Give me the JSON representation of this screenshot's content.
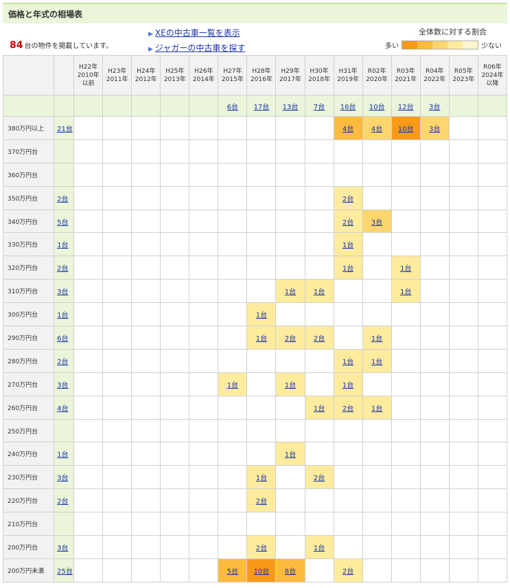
{
  "title": "価格と年式の相場表",
  "count": {
    "number": "84",
    "suffix": "台の物件を掲載しています。"
  },
  "links": [
    {
      "label": "XEの中古車一覧を表示"
    },
    {
      "label": "ジャガーの中古車を探す"
    }
  ],
  "legend": {
    "title": "全体数に対する割合",
    "many": "多い",
    "few": "少ない",
    "colors": [
      "#f89a18",
      "#fcbb3e",
      "#fdd66e",
      "#fdeb9e",
      "#fef6cc"
    ]
  },
  "columns": [
    "H22年\n2010年\n以前",
    "H23年\n2011年",
    "H24年\n2012年",
    "H25年\n2013年",
    "H26年\n2014年",
    "H27年\n2015年",
    "H28年\n2016年",
    "H29年\n2017年",
    "H30年\n2018年",
    "H31年\n2019年",
    "R02年\n2020年",
    "R03年\n2021年",
    "R04年\n2022年",
    "R05年\n2023年",
    "R06年\n2024年\n以降"
  ],
  "year_totals": [
    "",
    "",
    "",
    "",
    "",
    "6台",
    "17台",
    "13台",
    "7台",
    "16台",
    "10台",
    "12台",
    "3台",
    "",
    ""
  ],
  "rows": [
    {
      "label": "380万円以上",
      "total": "21台",
      "cells": [
        "",
        "",
        "",
        "",
        "",
        "",
        "",
        "",
        "",
        "4台",
        "4台",
        "10台",
        "3台",
        "",
        ""
      ],
      "levels": [
        0,
        0,
        0,
        0,
        0,
        0,
        0,
        0,
        0,
        3,
        2,
        4,
        2,
        0,
        0
      ]
    },
    {
      "label": "370万円台",
      "total": "",
      "cells": [
        "",
        "",
        "",
        "",
        "",
        "",
        "",
        "",
        "",
        "",
        "",
        "",
        "",
        "",
        ""
      ],
      "levels": [
        0,
        0,
        0,
        0,
        0,
        0,
        0,
        0,
        0,
        0,
        0,
        0,
        0,
        0,
        0
      ]
    },
    {
      "label": "360万円台",
      "total": "",
      "cells": [
        "",
        "",
        "",
        "",
        "",
        "",
        "",
        "",
        "",
        "",
        "",
        "",
        "",
        "",
        ""
      ],
      "levels": [
        0,
        0,
        0,
        0,
        0,
        0,
        0,
        0,
        0,
        0,
        0,
        0,
        0,
        0,
        0
      ]
    },
    {
      "label": "350万円台",
      "total": "2台",
      "cells": [
        "",
        "",
        "",
        "",
        "",
        "",
        "",
        "",
        "",
        "2台",
        "",
        "",
        "",
        "",
        ""
      ],
      "levels": [
        0,
        0,
        0,
        0,
        0,
        0,
        0,
        0,
        0,
        1,
        0,
        0,
        0,
        0,
        0
      ]
    },
    {
      "label": "340万円台",
      "total": "5台",
      "cells": [
        "",
        "",
        "",
        "",
        "",
        "",
        "",
        "",
        "",
        "2台",
        "3台",
        "",
        "",
        "",
        ""
      ],
      "levels": [
        0,
        0,
        0,
        0,
        0,
        0,
        0,
        0,
        0,
        1,
        2,
        0,
        0,
        0,
        0
      ]
    },
    {
      "label": "330万円台",
      "total": "1台",
      "cells": [
        "",
        "",
        "",
        "",
        "",
        "",
        "",
        "",
        "",
        "1台",
        "",
        "",
        "",
        "",
        ""
      ],
      "levels": [
        0,
        0,
        0,
        0,
        0,
        0,
        0,
        0,
        0,
        1,
        0,
        0,
        0,
        0,
        0
      ]
    },
    {
      "label": "320万円台",
      "total": "2台",
      "cells": [
        "",
        "",
        "",
        "",
        "",
        "",
        "",
        "",
        "",
        "1台",
        "",
        "1台",
        "",
        "",
        ""
      ],
      "levels": [
        0,
        0,
        0,
        0,
        0,
        0,
        0,
        0,
        0,
        1,
        0,
        1,
        0,
        0,
        0
      ]
    },
    {
      "label": "310万円台",
      "total": "3台",
      "cells": [
        "",
        "",
        "",
        "",
        "",
        "",
        "",
        "1台",
        "1台",
        "",
        "",
        "1台",
        "",
        "",
        ""
      ],
      "levels": [
        0,
        0,
        0,
        0,
        0,
        0,
        0,
        1,
        1,
        0,
        0,
        1,
        0,
        0,
        0
      ]
    },
    {
      "label": "300万円台",
      "total": "1台",
      "cells": [
        "",
        "",
        "",
        "",
        "",
        "",
        "1台",
        "",
        "",
        "",
        "",
        "",
        "",
        "",
        ""
      ],
      "levels": [
        0,
        0,
        0,
        0,
        0,
        0,
        1,
        0,
        0,
        0,
        0,
        0,
        0,
        0,
        0
      ]
    },
    {
      "label": "290万円台",
      "total": "6台",
      "cells": [
        "",
        "",
        "",
        "",
        "",
        "",
        "1台",
        "2台",
        "2台",
        "",
        "1台",
        "",
        "",
        "",
        ""
      ],
      "levels": [
        0,
        0,
        0,
        0,
        0,
        0,
        1,
        1,
        1,
        0,
        1,
        0,
        0,
        0,
        0
      ]
    },
    {
      "label": "280万円台",
      "total": "2台",
      "cells": [
        "",
        "",
        "",
        "",
        "",
        "",
        "",
        "",
        "",
        "1台",
        "1台",
        "",
        "",
        "",
        ""
      ],
      "levels": [
        0,
        0,
        0,
        0,
        0,
        0,
        0,
        0,
        0,
        1,
        1,
        0,
        0,
        0,
        0
      ]
    },
    {
      "label": "270万円台",
      "total": "3台",
      "cells": [
        "",
        "",
        "",
        "",
        "",
        "1台",
        "",
        "1台",
        "",
        "1台",
        "",
        "",
        "",
        "",
        ""
      ],
      "levels": [
        0,
        0,
        0,
        0,
        0,
        1,
        0,
        1,
        0,
        1,
        0,
        0,
        0,
        0,
        0
      ]
    },
    {
      "label": "260万円台",
      "total": "4台",
      "cells": [
        "",
        "",
        "",
        "",
        "",
        "",
        "",
        "",
        "1台",
        "2台",
        "1台",
        "",
        "",
        "",
        ""
      ],
      "levels": [
        0,
        0,
        0,
        0,
        0,
        0,
        0,
        0,
        1,
        1,
        1,
        0,
        0,
        0,
        0
      ]
    },
    {
      "label": "250万円台",
      "total": "",
      "cells": [
        "",
        "",
        "",
        "",
        "",
        "",
        "",
        "",
        "",
        "",
        "",
        "",
        "",
        "",
        ""
      ],
      "levels": [
        0,
        0,
        0,
        0,
        0,
        0,
        0,
        0,
        0,
        0,
        0,
        0,
        0,
        0,
        0
      ]
    },
    {
      "label": "240万円台",
      "total": "1台",
      "cells": [
        "",
        "",
        "",
        "",
        "",
        "",
        "",
        "1台",
        "",
        "",
        "",
        "",
        "",
        "",
        ""
      ],
      "levels": [
        0,
        0,
        0,
        0,
        0,
        0,
        0,
        1,
        0,
        0,
        0,
        0,
        0,
        0,
        0
      ]
    },
    {
      "label": "230万円台",
      "total": "3台",
      "cells": [
        "",
        "",
        "",
        "",
        "",
        "",
        "1台",
        "",
        "2台",
        "",
        "",
        "",
        "",
        "",
        ""
      ],
      "levels": [
        0,
        0,
        0,
        0,
        0,
        0,
        1,
        0,
        1,
        0,
        0,
        0,
        0,
        0,
        0
      ]
    },
    {
      "label": "220万円台",
      "total": "2台",
      "cells": [
        "",
        "",
        "",
        "",
        "",
        "",
        "2台",
        "",
        "",
        "",
        "",
        "",
        "",
        "",
        ""
      ],
      "levels": [
        0,
        0,
        0,
        0,
        0,
        0,
        1,
        0,
        0,
        0,
        0,
        0,
        0,
        0,
        0
      ]
    },
    {
      "label": "210万円台",
      "total": "",
      "cells": [
        "",
        "",
        "",
        "",
        "",
        "",
        "",
        "",
        "",
        "",
        "",
        "",
        "",
        "",
        ""
      ],
      "levels": [
        0,
        0,
        0,
        0,
        0,
        0,
        0,
        0,
        0,
        0,
        0,
        0,
        0,
        0,
        0
      ]
    },
    {
      "label": "200万円台",
      "total": "3台",
      "cells": [
        "",
        "",
        "",
        "",
        "",
        "",
        "2台",
        "",
        "1台",
        "",
        "",
        "",
        "",
        "",
        ""
      ],
      "levels": [
        0,
        0,
        0,
        0,
        0,
        0,
        1,
        0,
        1,
        0,
        0,
        0,
        0,
        0,
        0
      ]
    },
    {
      "label": "200万円未満",
      "total": "25台",
      "cells": [
        "",
        "",
        "",
        "",
        "",
        "5台",
        "10台",
        "8台",
        "",
        "2台",
        "",
        "",
        "",
        "",
        ""
      ],
      "levels": [
        0,
        0,
        0,
        0,
        0,
        3,
        4,
        3,
        0,
        1,
        0,
        0,
        0,
        0,
        0
      ]
    }
  ]
}
